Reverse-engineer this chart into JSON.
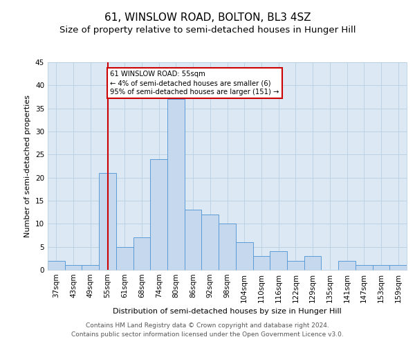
{
  "title": "61, WINSLOW ROAD, BOLTON, BL3 4SZ",
  "subtitle": "Size of property relative to semi-detached houses in Hunger Hill",
  "xlabel": "Distribution of semi-detached houses by size in Hunger Hill",
  "ylabel": "Number of semi-detached properties",
  "categories": [
    "37sqm",
    "43sqm",
    "49sqm",
    "55sqm",
    "61sqm",
    "68sqm",
    "74sqm",
    "80sqm",
    "86sqm",
    "92sqm",
    "98sqm",
    "104sqm",
    "110sqm",
    "116sqm",
    "122sqm",
    "129sqm",
    "135sqm",
    "141sqm",
    "147sqm",
    "153sqm",
    "159sqm"
  ],
  "values": [
    2,
    1,
    1,
    21,
    5,
    7,
    24,
    37,
    13,
    12,
    10,
    6,
    3,
    4,
    2,
    3,
    0,
    2,
    1,
    1,
    1
  ],
  "bar_color": "#c5d8ed",
  "bar_edge_color": "#5b9bd5",
  "highlight_index": 3,
  "annotation_line1": "61 WINSLOW ROAD: 55sqm",
  "annotation_line2": "← 4% of semi-detached houses are smaller (6)",
  "annotation_line3": "95% of semi-detached houses are larger (151) →",
  "annotation_box_color": "#ffffff",
  "annotation_box_edge_color": "#cc0000",
  "footer_line1": "Contains HM Land Registry data © Crown copyright and database right 2024.",
  "footer_line2": "Contains public sector information licensed under the Open Government Licence v3.0.",
  "ylim": [
    0,
    45
  ],
  "yticks": [
    0,
    5,
    10,
    15,
    20,
    25,
    30,
    35,
    40,
    45
  ],
  "background_color": "#ffffff",
  "plot_bg_color": "#dce9f5",
  "grid_color": "#b8cfe0",
  "title_fontsize": 11,
  "subtitle_fontsize": 9.5,
  "axis_label_fontsize": 8,
  "tick_fontsize": 7.5,
  "footer_fontsize": 6.5
}
